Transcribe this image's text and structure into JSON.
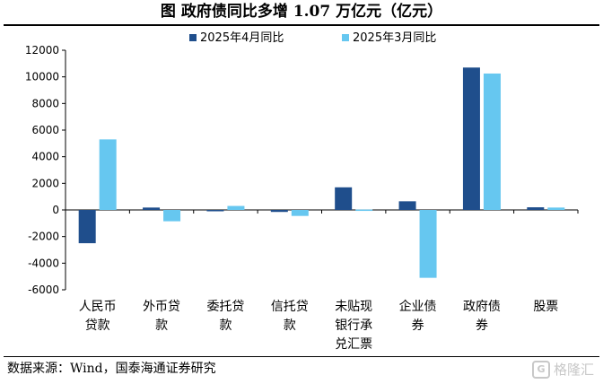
{
  "figure": {
    "title": "图  政府债同比多增 1.07 万亿元（亿元）",
    "source": "数据来源：Wind，国泰海通证券研究",
    "watermark": "格隆汇"
  },
  "chart_data": {
    "type": "bar",
    "categories": [
      [
        "人民币",
        "贷款"
      ],
      [
        "外币贷",
        "款"
      ],
      [
        "委托贷",
        "款"
      ],
      [
        "信托贷",
        "款"
      ],
      [
        "未贴现",
        "银行承",
        "兑汇票"
      ],
      [
        "企业债",
        "券"
      ],
      [
        "政府债",
        "券"
      ],
      [
        "股票"
      ]
    ],
    "series": [
      {
        "name": "2025年4月同比",
        "color": "#1f4e8c",
        "values": [
          -2500,
          180,
          -90,
          -150,
          1700,
          650,
          10700,
          200
        ]
      },
      {
        "name": "2025年3月同比",
        "color": "#66c7f0",
        "values": [
          5300,
          -850,
          300,
          -450,
          30,
          -5100,
          10250,
          180
        ]
      }
    ],
    "ylim": [
      -6000,
      12000
    ],
    "yticks": [
      -6000,
      -4000,
      -2000,
      0,
      2000,
      4000,
      6000,
      8000,
      10000,
      12000
    ],
    "legend_position": "top-center",
    "grid": false
  }
}
